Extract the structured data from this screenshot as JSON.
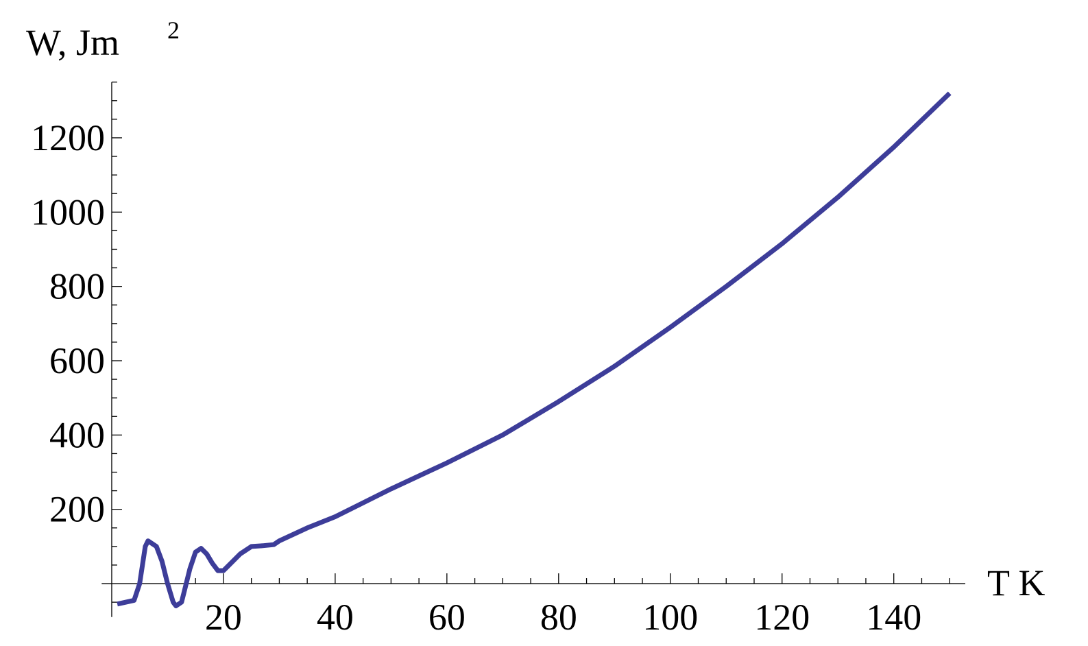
{
  "chart_data": {
    "type": "line",
    "ylabel": "W,  Jm",
    "ylabel_sup": "2",
    "xlabel": "T  K",
    "x": [
      1,
      4,
      5,
      6,
      6.5,
      8,
      9,
      10,
      11,
      11.5,
      12.5,
      13,
      14,
      15,
      16,
      17,
      18,
      19,
      20,
      21,
      23,
      25,
      27,
      29,
      30,
      35,
      40,
      50,
      60,
      70,
      80,
      90,
      100,
      110,
      120,
      130,
      140,
      150
    ],
    "series": [
      {
        "color": "#3d3d99",
        "values": [
          -55,
          -45,
          0,
          100,
          115,
          100,
          60,
          0,
          -50,
          -60,
          -50,
          -20,
          40,
          85,
          95,
          80,
          55,
          35,
          35,
          50,
          80,
          100,
          102,
          105,
          115,
          150,
          180,
          255,
          325,
          400,
          490,
          585,
          690,
          800,
          915,
          1040,
          1175,
          1320
        ]
      }
    ],
    "xlim": [
      -1.8,
      152.8
    ],
    "ylim": [
      -90,
      1350
    ],
    "xticks": [
      20,
      40,
      60,
      80,
      100,
      120,
      140
    ],
    "yticks": [
      200,
      400,
      600,
      800,
      1000,
      1200
    ],
    "xminor_step": 5,
    "yminor_step": 50
  }
}
